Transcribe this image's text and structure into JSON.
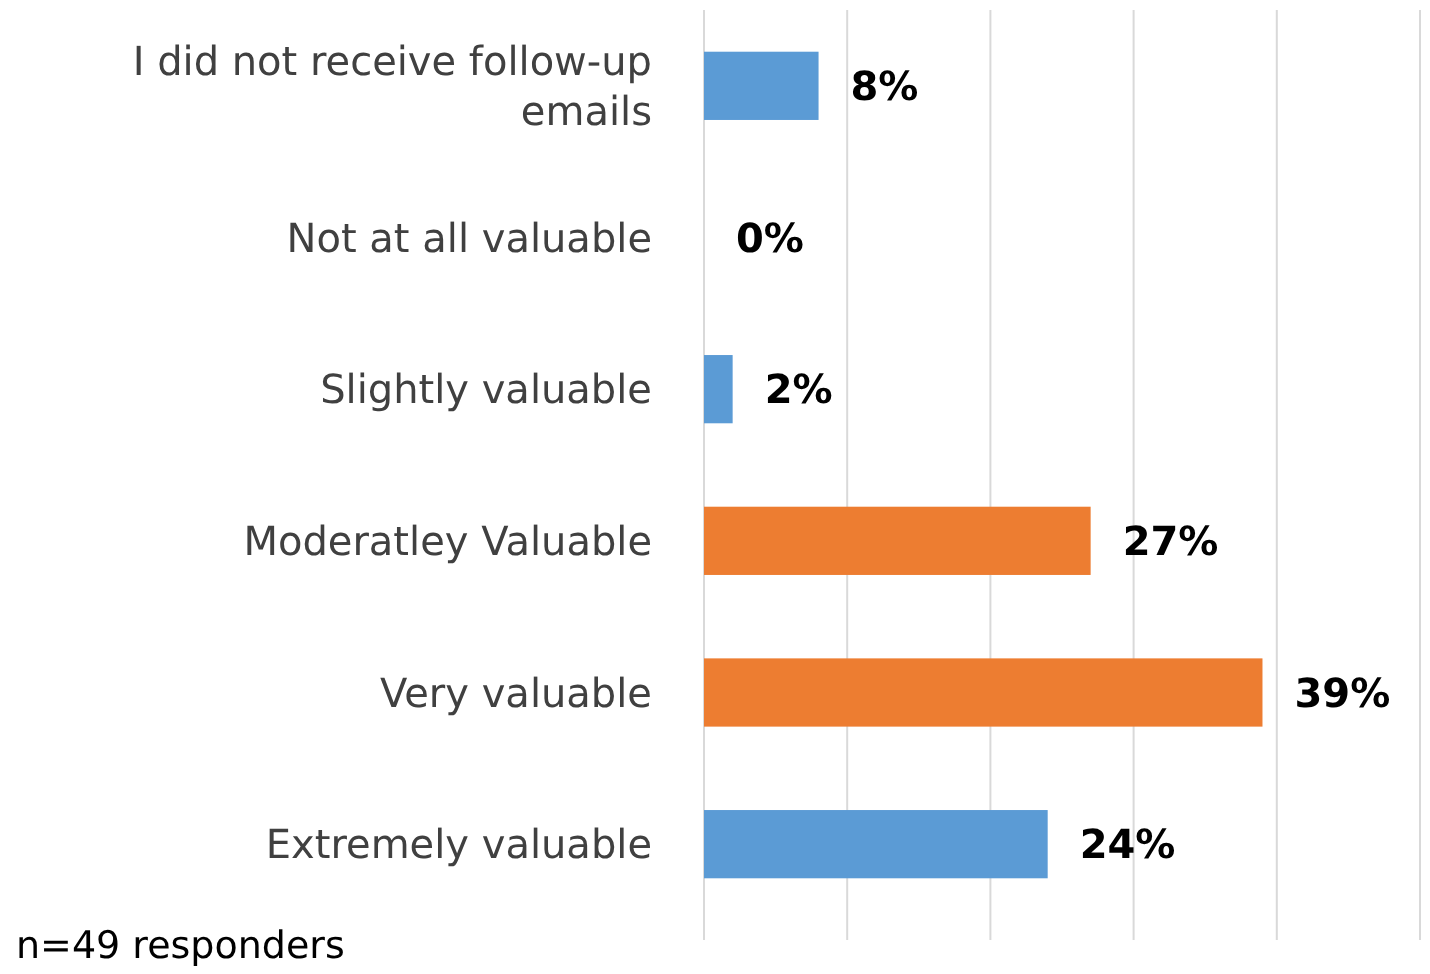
{
  "chart_data": {
    "type": "bar",
    "orientation": "horizontal",
    "categories": [
      "I did not receive follow-up emails",
      "Not at all valuable",
      "Slightly valuable",
      "Moderatley Valuable",
      "Very valuable",
      "Extremely valuable"
    ],
    "values": [
      8,
      0,
      2,
      27,
      39,
      24
    ],
    "colors": [
      "#5b9bd5",
      "#5b9bd5",
      "#5b9bd5",
      "#ed7d31",
      "#ed7d31",
      "#5b9bd5"
    ],
    "value_labels": [
      "8%",
      "0%",
      "2%",
      "27%",
      "39%",
      "24%"
    ],
    "xlim": [
      0,
      50
    ],
    "xticks": [
      {
        "value": 0,
        "label": null
      },
      {
        "value": 10,
        "label": null
      },
      {
        "value": 20,
        "label": null
      },
      {
        "value": 30,
        "label": null
      },
      {
        "value": 40,
        "label": null
      },
      {
        "value": 50,
        "label": null
      }
    ],
    "tick_labels": "y",
    "grid": "x",
    "annotations": [
      "n=49 responders"
    ]
  }
}
